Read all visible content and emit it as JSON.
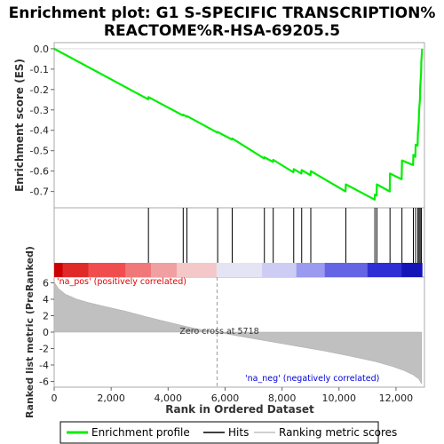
{
  "chart_data": {
    "type": "line",
    "title": "Enrichment plot: G1 S-SPECIFIC TRANSCRIPTION%\nREACTOME%R-HSA-69205.5",
    "title_lines": [
      "Enrichment plot: G1 S-SPECIFIC TRANSCRIPTION%",
      "REACTOME%R-HSA-69205.5"
    ],
    "xlabel": "Rank in Ordered Dataset",
    "xlim": [
      0,
      13000
    ],
    "x_ticks": [
      0,
      2000,
      4000,
      6000,
      8000,
      10000,
      12000
    ],
    "x_tick_labels": [
      "0",
      "2,000",
      "4,000",
      "6,000",
      "8,000",
      "10,000",
      "12,000"
    ],
    "es_panel": {
      "ylabel": "Enrichment score (ES)",
      "ylim": [
        -0.78,
        0.03
      ],
      "y_ticks": [
        0.0,
        -0.1,
        -0.2,
        -0.3,
        -0.4,
        -0.5,
        -0.6,
        -0.7
      ],
      "y_tick_labels": [
        "0.0",
        "-0.1",
        "-0.2",
        "-0.3",
        "-0.4",
        "-0.5",
        "-0.6",
        "-0.7"
      ],
      "series": [
        {
          "name": "Enrichment profile",
          "color": "#00ee00",
          "x": [
            0,
            3300,
            3310,
            4520,
            4530,
            4650,
            4660,
            5730,
            5740,
            6240,
            6250,
            7370,
            7380,
            7680,
            7690,
            8400,
            8410,
            8680,
            8690,
            9000,
            9010,
            10230,
            10240,
            11250,
            11260,
            11320,
            11330,
            11780,
            11790,
            12200,
            12210,
            12600,
            12610,
            12680,
            12690,
            12760,
            12770,
            12800,
            12810,
            12840,
            12850,
            12880,
            12890,
            12920
          ],
          "y": [
            0.0,
            -0.248,
            -0.237,
            -0.327,
            -0.323,
            -0.333,
            -0.33,
            -0.411,
            -0.408,
            -0.445,
            -0.44,
            -0.538,
            -0.532,
            -0.555,
            -0.545,
            -0.606,
            -0.59,
            -0.612,
            -0.595,
            -0.62,
            -0.6,
            -0.7,
            -0.665,
            -0.74,
            -0.715,
            -0.72,
            -0.665,
            -0.7,
            -0.612,
            -0.64,
            -0.548,
            -0.57,
            -0.52,
            -0.53,
            -0.47,
            -0.475,
            -0.415,
            -0.36,
            -0.305,
            -0.25,
            -0.19,
            -0.12,
            -0.06,
            0.0
          ]
        }
      ]
    },
    "hits_panel": {
      "series_name": "Hits",
      "hit_ranks": [
        3310,
        4530,
        4660,
        5740,
        6250,
        7380,
        7690,
        8410,
        8690,
        9010,
        10240,
        11260,
        11330,
        11790,
        12210,
        12610,
        12690,
        12770,
        12810,
        12850,
        12890
      ]
    },
    "rank_panel": {
      "ylabel": "Ranked list metric (PreRanked)",
      "ylim": [
        -6.7,
        6.7
      ],
      "y_ticks": [
        6,
        4,
        2,
        0,
        -2,
        -4,
        -6
      ],
      "y_tick_labels": [
        "6",
        "4",
        "2",
        "0",
        "-2",
        "-4",
        "-6"
      ],
      "series_name": "Ranking metric scores",
      "x": [
        0,
        150,
        400,
        800,
        1200,
        1800,
        2500,
        3200,
        3900,
        4500,
        5000,
        5718,
        6500,
        7500,
        8500,
        9500,
        10500,
        11300,
        11900,
        12300,
        12600,
        12800,
        12900
      ],
      "y": [
        6.1,
        5.3,
        4.6,
        4.0,
        3.6,
        3.1,
        2.55,
        1.9,
        1.3,
        0.8,
        0.4,
        0.0,
        -0.5,
        -1.1,
        -1.7,
        -2.3,
        -3.0,
        -3.6,
        -4.2,
        -4.7,
        -5.2,
        -5.7,
        -6.3
      ],
      "zero_cross_label": "Zero cross at 5718",
      "zero_cross_x": 5718,
      "pos_label": "'na_pos' (positively correlated)",
      "neg_label": "'na_neg' (negatively correlated)"
    },
    "color_bar_bounds": [
      0,
      300,
      1200,
      2500,
      3400,
      4300,
      5700,
      7300,
      8500,
      9500,
      11000,
      12200,
      12920
    ],
    "color_bar_colors": [
      "#cc0000",
      "#e02a2a",
      "#f04e4e",
      "#f07878",
      "#f0a0a0",
      "#f4c8c8",
      "#e4e4f4",
      "#ccccf4",
      "#9a9af0",
      "#6464e4",
      "#2e2ed4",
      "#1414b8"
    ],
    "legend": {
      "position": "bottom",
      "items": [
        {
          "label": "Enrichment profile",
          "color": "#00ee00"
        },
        {
          "label": "Hits",
          "color": "#000000"
        },
        {
          "label": "Ranking metric scores",
          "color": "#c0c0c0"
        }
      ]
    }
  }
}
